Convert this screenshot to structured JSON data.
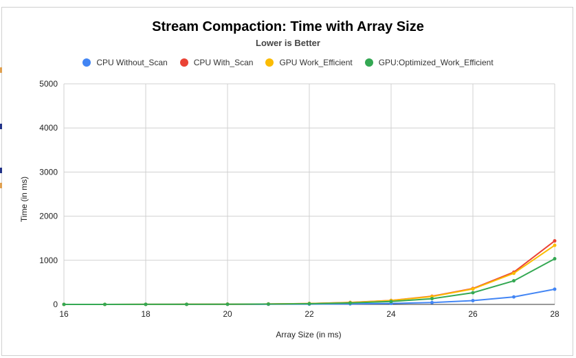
{
  "chart_data": {
    "type": "line",
    "title": "Stream Compaction: Time with Array Size",
    "subtitle": "Lower is Better",
    "xlabel": "Array Size (in ms)",
    "ylabel": "Time (in ms)",
    "x": [
      16,
      17,
      18,
      19,
      20,
      21,
      22,
      23,
      24,
      25,
      26,
      27,
      28
    ],
    "xticks": [
      16,
      18,
      20,
      22,
      24,
      26,
      28
    ],
    "yticks": [
      0,
      1000,
      2000,
      3000,
      4000,
      5000
    ],
    "xlim": [
      16,
      28
    ],
    "ylim": [
      0,
      5000
    ],
    "grid": true,
    "legend_position": "top",
    "series": [
      {
        "name": "CPU Without_Scan",
        "color": "#4285f4",
        "values": [
          0.1,
          0.2,
          0.4,
          0.8,
          1.5,
          3,
          6,
          12,
          22,
          42,
          85,
          170,
          345
        ]
      },
      {
        "name": "CPU With_Scan",
        "color": "#ea4335",
        "values": [
          0.3,
          0.6,
          1.2,
          2.5,
          5,
          10,
          20,
          45,
          90,
          185,
          360,
          730,
          1440
        ]
      },
      {
        "name": "GPU Work_Efficient",
        "color": "#fbbc04",
        "values": [
          0.4,
          0.7,
          1.3,
          2.6,
          5,
          10,
          21,
          43,
          88,
          178,
          350,
          705,
          1340
        ]
      },
      {
        "name": "GPU:Optimized_Work_Efficient",
        "color": "#34a853",
        "values": [
          0.3,
          0.5,
          1,
          2,
          4,
          8,
          16,
          32,
          65,
          130,
          265,
          535,
          1035
        ]
      }
    ]
  }
}
